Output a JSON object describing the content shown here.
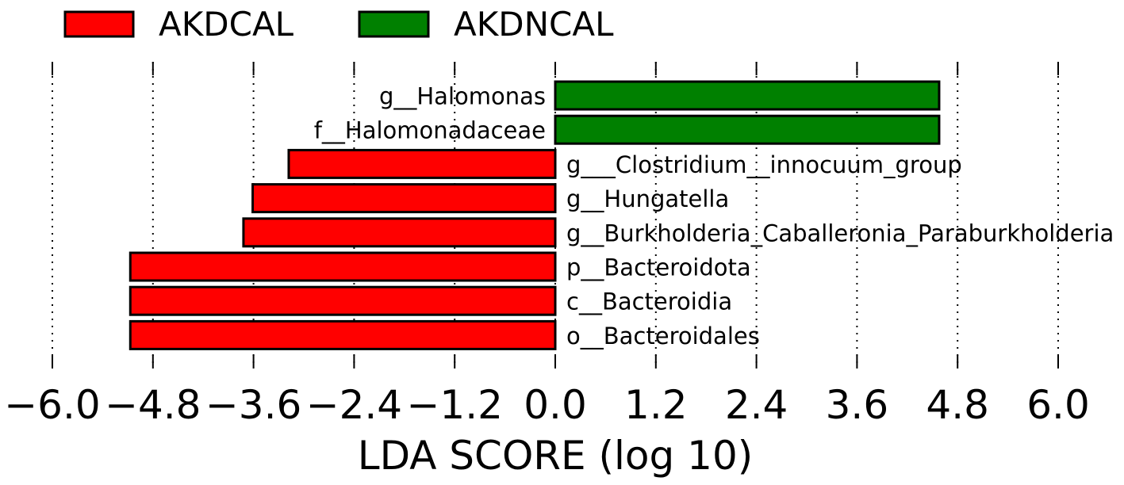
{
  "chart_data": {
    "type": "bar",
    "orientation": "horizontal",
    "xlabel": "LDA SCORE (log 10)",
    "xlim": [
      -6.0,
      6.0
    ],
    "xticks": [
      -6.0,
      -4.8,
      -3.6,
      -2.4,
      -1.2,
      0.0,
      1.2,
      2.4,
      3.6,
      4.8,
      6.0
    ],
    "xtick_labels": [
      "−6.0",
      "−4.8",
      "−3.6",
      "−2.4",
      "−1.2",
      "0.0",
      "1.2",
      "2.4",
      "3.6",
      "4.8",
      "6.0"
    ],
    "grid": true,
    "legend": "top-left",
    "bar_edge_color": "#000000",
    "categories": [
      "g__Halomonas",
      "f__Halomonadaceae",
      "g___Clostridium__innocuum_group",
      "g__Hungatella",
      "g__Burkholderia_Caballeronia_Paraburkholderia",
      "p__Bacteroidota",
      "c__Bacteroidia",
      "o__Bacteroidales"
    ],
    "series": [
      {
        "name": "AKDCAL",
        "color": "#FF0000",
        "values": [
          null,
          null,
          -3.18,
          -3.61,
          -3.72,
          -5.07,
          -5.07,
          -5.07
        ]
      },
      {
        "name": "AKDNCAL",
        "color": "#008000",
        "values": [
          4.58,
          4.58,
          null,
          null,
          null,
          null,
          null,
          null
        ]
      }
    ]
  }
}
